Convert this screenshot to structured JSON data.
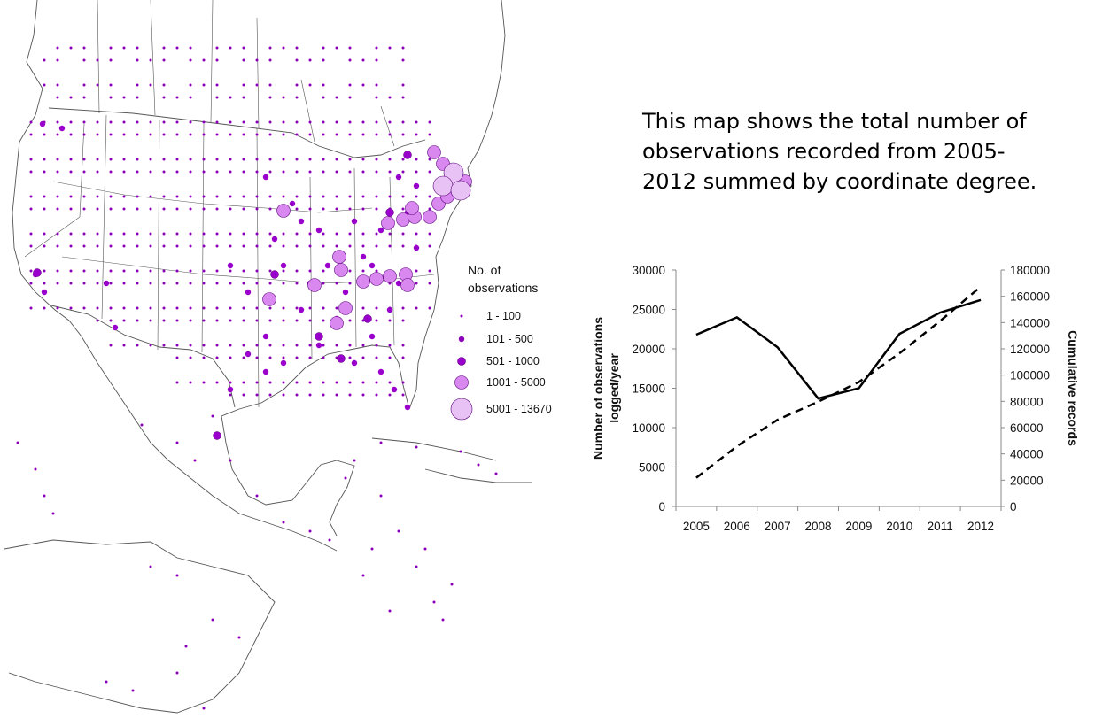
{
  "caption": "This map shows the total number of observations recorded from 2005-2012 summed by coordinate degree.",
  "legend": {
    "title_line1": "No. of",
    "title_line2": "observations",
    "classes": [
      {
        "label": "1 - 100",
        "color": "#8a00b8"
      },
      {
        "label": "101 - 500",
        "color": "#8a00b8"
      },
      {
        "label": "501 - 1000",
        "color": "#9a00cc"
      },
      {
        "label": "1001 - 5000",
        "color": "#d988f0"
      },
      {
        "label": "5001 - 13670",
        "color": "#e8c2f5"
      }
    ]
  },
  "map": {
    "region": "North America",
    "symbol_colors": {
      "small": "#8a00b8",
      "medium": "#9a00cc",
      "large": "#d988f0",
      "largest": "#e8c2f5",
      "outline": "#5a007a",
      "boundaries": "#555555"
    }
  },
  "chart_data": {
    "type": "line",
    "categories": [
      "2005",
      "2006",
      "2007",
      "2008",
      "2009",
      "2010",
      "2011",
      "2012"
    ],
    "ylabel": "Number of observations logged/year",
    "y2label": "Cumulative records",
    "ylim": [
      0,
      30000
    ],
    "y2lim": [
      0,
      180000
    ],
    "yticks": [
      "0",
      "5000",
      "10000",
      "15000",
      "20000",
      "25000",
      "30000"
    ],
    "y2ticks": [
      "0",
      "20000",
      "40000",
      "60000",
      "80000",
      "100000",
      "120000",
      "140000",
      "160000",
      "180000"
    ],
    "series": [
      {
        "style": "solid",
        "axis": "left",
        "values": [
          21800,
          24000,
          20200,
          13700,
          15000,
          21900,
          24600,
          26200
        ]
      },
      {
        "style": "dashed",
        "axis": "right",
        "values": [
          21800,
          45800,
          66000,
          79700,
          94700,
          116600,
          141200,
          167400
        ]
      }
    ],
    "grid": false
  }
}
